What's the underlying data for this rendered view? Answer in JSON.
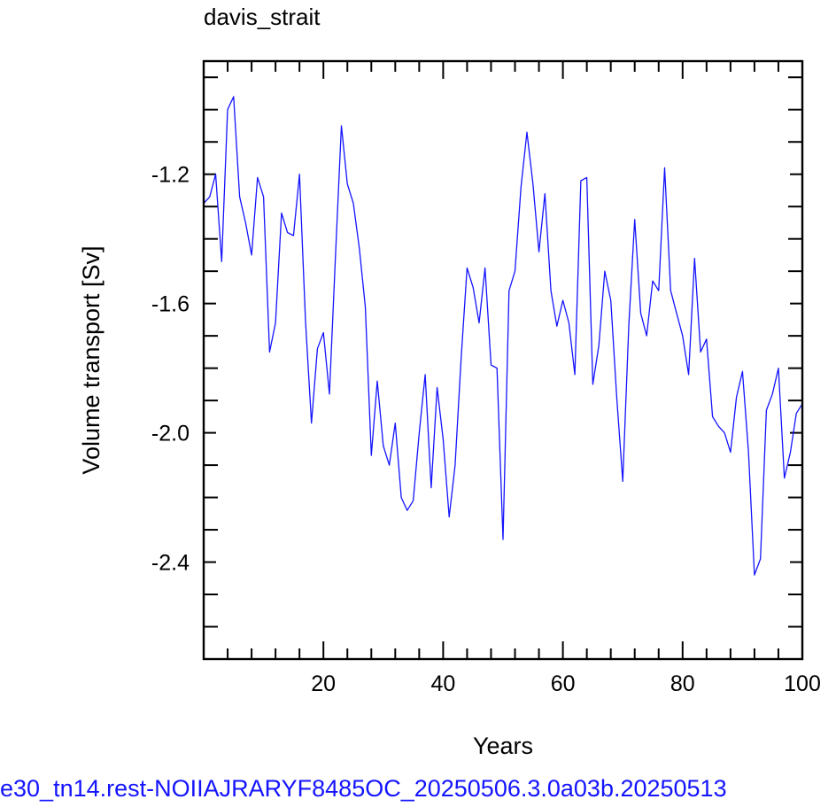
{
  "footer_text": "e30_tn14.rest-NOIIAJRARYF8485OC_20250506.3.0a03b.20250513",
  "chart_data": {
    "type": "line",
    "title": "davis_strait",
    "xlabel": "Years",
    "ylabel": "Volume transport [Sv]",
    "xlim": [
      0,
      100
    ],
    "ylim": [
      -2.7,
      -0.85
    ],
    "xticks": [
      20,
      40,
      60,
      80,
      100
    ],
    "xtick_labels": [
      "20",
      "40",
      "60",
      "80",
      "100"
    ],
    "yticks": [
      -1.2,
      -1.6,
      -2.0,
      -2.4
    ],
    "ytick_labels": [
      "-1.2",
      "-1.6",
      "-2.0",
      "-2.4"
    ],
    "line_color": "#1414ff",
    "series": [
      {
        "x": [
          0,
          1,
          2,
          3,
          4,
          5,
          6,
          7,
          8,
          9,
          10,
          11,
          12,
          13,
          14,
          15,
          16,
          17,
          18,
          19,
          20,
          21,
          22,
          23,
          24,
          25,
          26,
          27,
          28,
          29,
          30,
          31,
          32,
          33,
          34,
          35,
          36,
          37,
          38,
          39,
          40,
          41,
          42,
          43,
          44,
          45,
          46,
          47,
          48,
          49,
          50,
          51,
          52,
          53,
          54,
          55,
          56,
          57,
          58,
          59,
          60,
          61,
          62,
          63,
          64,
          65,
          66,
          67,
          68,
          69,
          70,
          71,
          72,
          73,
          74,
          75,
          76,
          77,
          78,
          79,
          80,
          81,
          82,
          83,
          84,
          85,
          86,
          87,
          88,
          89,
          90,
          91,
          92,
          93,
          94,
          95,
          96,
          97,
          98,
          99,
          100
        ],
        "values": [
          -1.29,
          -1.27,
          -1.2,
          -1.47,
          -1.0,
          -0.96,
          -1.27,
          -1.35,
          -1.45,
          -1.21,
          -1.27,
          -1.75,
          -1.66,
          -1.32,
          -1.38,
          -1.39,
          -1.2,
          -1.65,
          -1.97,
          -1.74,
          -1.69,
          -1.88,
          -1.46,
          -1.05,
          -1.23,
          -1.29,
          -1.43,
          -1.61,
          -2.07,
          -1.84,
          -2.04,
          -2.1,
          -1.97,
          -2.2,
          -2.24,
          -2.21,
          -2.0,
          -1.82,
          -2.17,
          -1.86,
          -2.02,
          -2.26,
          -2.1,
          -1.77,
          -1.49,
          -1.55,
          -1.66,
          -1.49,
          -1.79,
          -1.8,
          -2.33,
          -1.56,
          -1.5,
          -1.24,
          -1.07,
          -1.23,
          -1.44,
          -1.26,
          -1.56,
          -1.67,
          -1.59,
          -1.66,
          -1.82,
          -1.22,
          -1.21,
          -1.85,
          -1.73,
          -1.5,
          -1.59,
          -1.89,
          -2.15,
          -1.67,
          -1.34,
          -1.63,
          -1.7,
          -1.53,
          -1.56,
          -1.18,
          -1.56,
          -1.63,
          -1.7,
          -1.82,
          -1.46,
          -1.75,
          -1.71,
          -1.95,
          -1.98,
          -2.0,
          -2.06,
          -1.89,
          -1.81,
          -2.06,
          -2.44,
          -2.39,
          -1.93,
          -1.88,
          -1.8,
          -2.14,
          -2.06,
          -1.94,
          -1.91
        ]
      }
    ]
  }
}
